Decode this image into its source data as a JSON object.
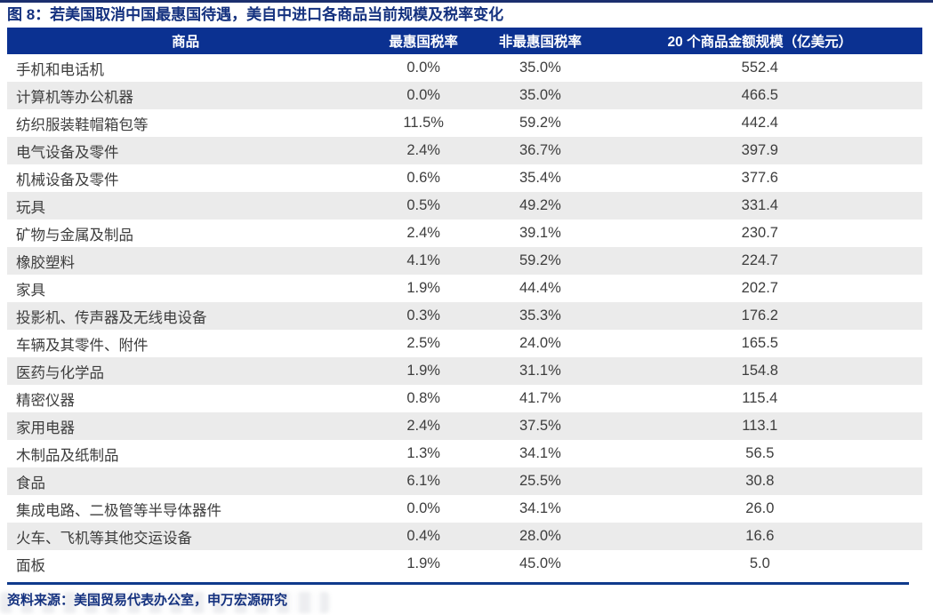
{
  "page": {
    "title": "图 8：若美国取消中国最惠国待遇，美自中进口各商品当前规模及税率变化",
    "source_note": "资料来源：美国贸易代表办公室，申万宏源研究"
  },
  "colors": {
    "header_bg": "#0b3191",
    "title_text": "#14317f",
    "row_alt_bg": "#ebebeb",
    "top_rule": "#1b2f6e",
    "bottom_rule": "#0f3a8c"
  },
  "table": {
    "columns": [
      "商品",
      "最惠国税率",
      "非最惠国税率",
      "20 个商品金额规模（亿美元）"
    ],
    "rows": [
      {
        "product": "手机和电话机",
        "mfn_rate": "0.0%",
        "non_mfn_rate": "35.0%",
        "amount": "552.4"
      },
      {
        "product": "计算机等办公机器",
        "mfn_rate": "0.0%",
        "non_mfn_rate": "35.0%",
        "amount": "466.5"
      },
      {
        "product": "纺织服装鞋帽箱包等",
        "mfn_rate": "11.5%",
        "non_mfn_rate": "59.2%",
        "amount": "442.4"
      },
      {
        "product": "电气设备及零件",
        "mfn_rate": "2.4%",
        "non_mfn_rate": "36.7%",
        "amount": "397.9"
      },
      {
        "product": "机械设备及零件",
        "mfn_rate": "0.6%",
        "non_mfn_rate": "35.4%",
        "amount": "377.6"
      },
      {
        "product": "玩具",
        "mfn_rate": "0.5%",
        "non_mfn_rate": "49.2%",
        "amount": "331.4"
      },
      {
        "product": "矿物与金属及制品",
        "mfn_rate": "2.4%",
        "non_mfn_rate": "39.1%",
        "amount": "230.7"
      },
      {
        "product": "橡胶塑料",
        "mfn_rate": "4.1%",
        "non_mfn_rate": "59.2%",
        "amount": "224.7"
      },
      {
        "product": "家具",
        "mfn_rate": "1.9%",
        "non_mfn_rate": "44.4%",
        "amount": "202.7"
      },
      {
        "product": "投影机、传声器及无线电设备",
        "mfn_rate": "0.3%",
        "non_mfn_rate": "35.3%",
        "amount": "176.2"
      },
      {
        "product": "车辆及其零件、附件",
        "mfn_rate": "2.5%",
        "non_mfn_rate": "24.0%",
        "amount": "165.5"
      },
      {
        "product": "医药与化学品",
        "mfn_rate": "1.9%",
        "non_mfn_rate": "31.1%",
        "amount": "154.8"
      },
      {
        "product": "精密仪器",
        "mfn_rate": "0.8%",
        "non_mfn_rate": "41.7%",
        "amount": "115.4"
      },
      {
        "product": "家用电器",
        "mfn_rate": "2.4%",
        "non_mfn_rate": "37.5%",
        "amount": "113.1"
      },
      {
        "product": "木制品及纸制品",
        "mfn_rate": "1.3%",
        "non_mfn_rate": "34.1%",
        "amount": "56.5"
      },
      {
        "product": "食品",
        "mfn_rate": "6.1%",
        "non_mfn_rate": "25.5%",
        "amount": "30.8"
      },
      {
        "product": "集成电路、二极管等半导体器件",
        "mfn_rate": "0.0%",
        "non_mfn_rate": "34.1%",
        "amount": "26.0"
      },
      {
        "product": "火车、飞机等其他交运设备",
        "mfn_rate": "0.4%",
        "non_mfn_rate": "28.0%",
        "amount": "16.6"
      },
      {
        "product": "面板",
        "mfn_rate": "1.9%",
        "non_mfn_rate": "45.0%",
        "amount": "5.0"
      }
    ]
  },
  "chart_data": {
    "type": "table",
    "title": "图 8：若美国取消中国最惠国待遇，美自中进口各商品当前规模及税率变化",
    "columns": [
      "商品",
      "最惠国税率",
      "非最惠国税率",
      "20 个商品金额规模（亿美元）"
    ],
    "rows": [
      [
        "手机和电话机",
        0.0,
        35.0,
        552.4
      ],
      [
        "计算机等办公机器",
        0.0,
        35.0,
        466.5
      ],
      [
        "纺织服装鞋帽箱包等",
        11.5,
        59.2,
        442.4
      ],
      [
        "电气设备及零件",
        2.4,
        36.7,
        397.9
      ],
      [
        "机械设备及零件",
        0.6,
        35.4,
        377.6
      ],
      [
        "玩具",
        0.5,
        49.2,
        331.4
      ],
      [
        "矿物与金属及制品",
        2.4,
        39.1,
        230.7
      ],
      [
        "橡胶塑料",
        4.1,
        59.2,
        224.7
      ],
      [
        "家具",
        1.9,
        44.4,
        202.7
      ],
      [
        "投影机、传声器及无线电设备",
        0.3,
        35.3,
        176.2
      ],
      [
        "车辆及其零件、附件",
        2.5,
        24.0,
        165.5
      ],
      [
        "医药与化学品",
        1.9,
        31.1,
        154.8
      ],
      [
        "精密仪器",
        0.8,
        41.7,
        115.4
      ],
      [
        "家用电器",
        2.4,
        37.5,
        113.1
      ],
      [
        "木制品及纸制品",
        1.3,
        34.1,
        56.5
      ],
      [
        "食品",
        6.1,
        25.5,
        30.8
      ],
      [
        "集成电路、二极管等半导体器件",
        0.0,
        34.1,
        26.0
      ],
      [
        "火车、飞机等其他交运设备",
        0.4,
        28.0,
        16.6
      ],
      [
        "面板",
        1.9,
        45.0,
        5.0
      ]
    ],
    "units": {
      "最惠国税率": "%",
      "非最惠国税率": "%",
      "20 个商品金额规模": "亿美元"
    },
    "source": "资料来源：美国贸易代表办公室，申万宏源研究"
  }
}
